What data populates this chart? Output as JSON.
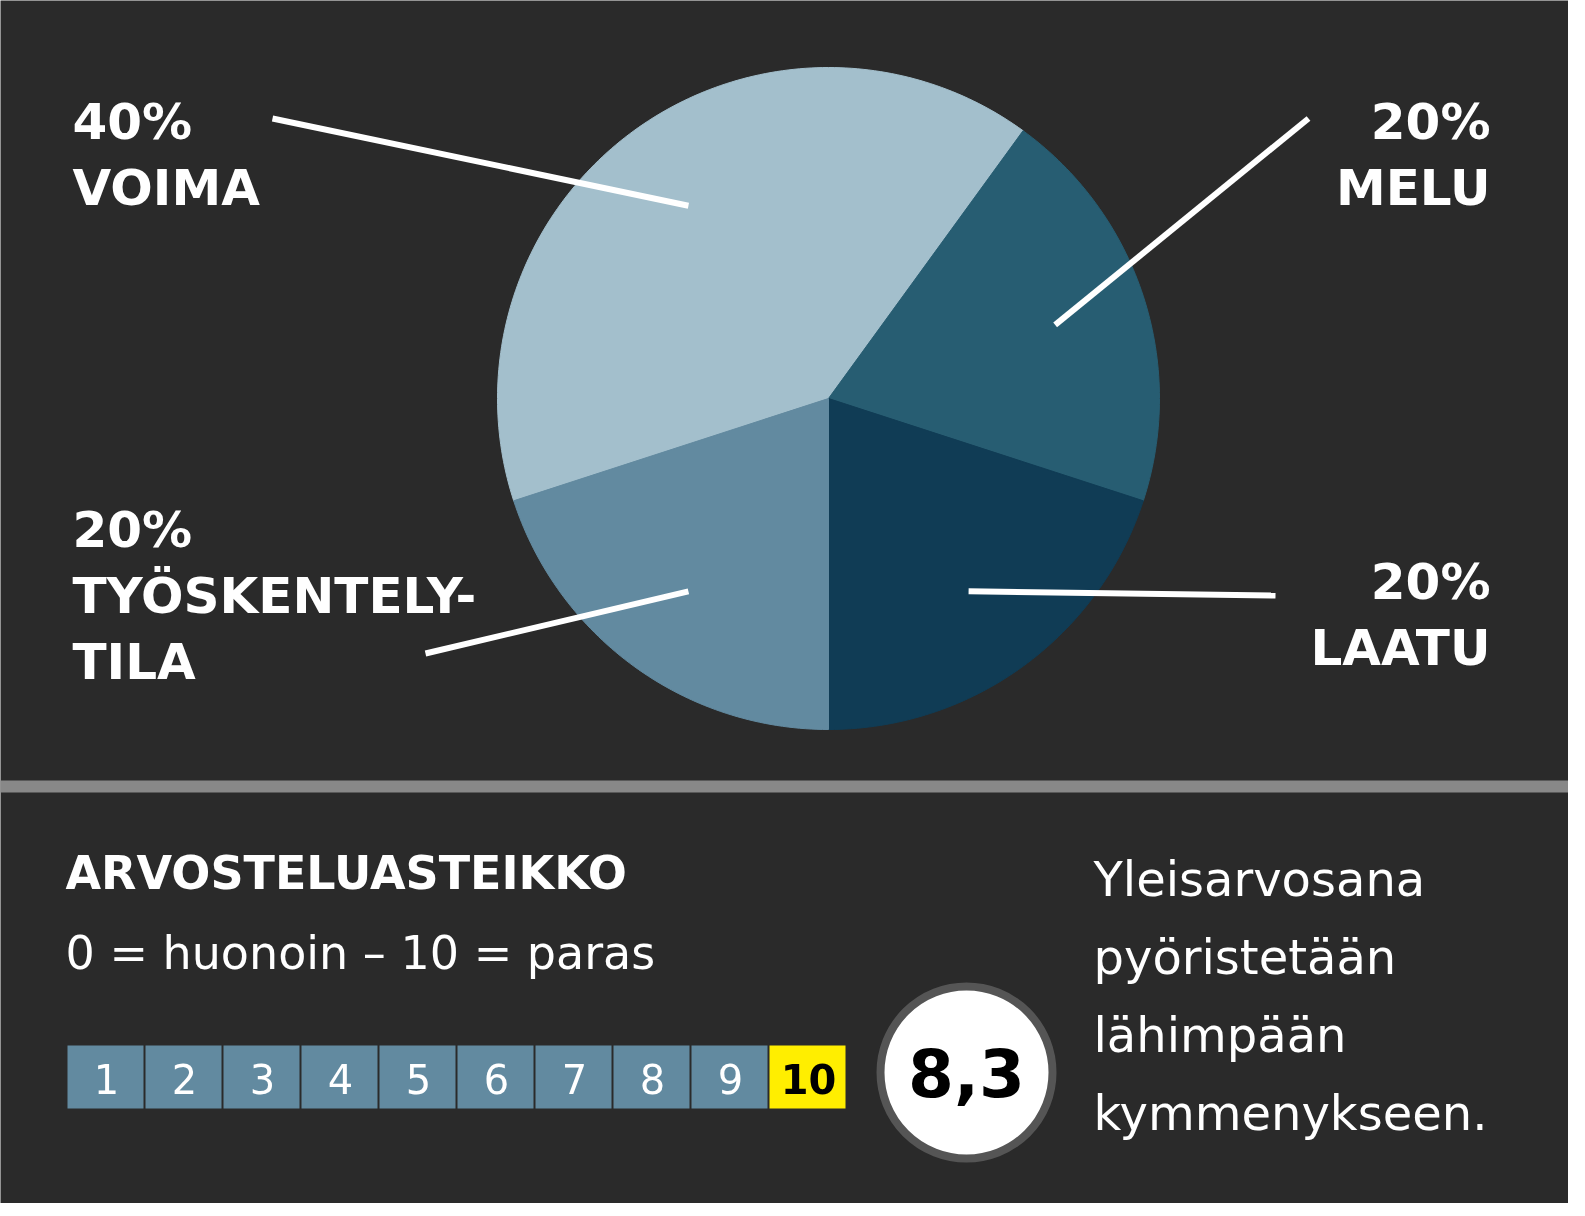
{
  "chart_data": {
    "type": "pie",
    "title": "ARVOSTELUASTEIKKO",
    "subtitle": "0 = huonoin – 10 = paras",
    "categories": [
      "VOIMA",
      "MELU",
      "LAATU",
      "TYÖSKENTELY-TILA"
    ],
    "values": [
      40,
      20,
      20,
      20
    ],
    "value_labels": [
      "40%",
      "20%",
      "20%",
      "20%"
    ],
    "colors": [
      "#a3bfcc",
      "#275d72",
      "#103c55",
      "#628aa0"
    ],
    "annotations": [
      "1",
      "2",
      "3",
      "4",
      "5",
      "6",
      "7",
      "8",
      "9",
      "10",
      "8,3",
      "Yleisarvosana pyöristetään lähimpään kymmenykseen."
    ]
  }
}
